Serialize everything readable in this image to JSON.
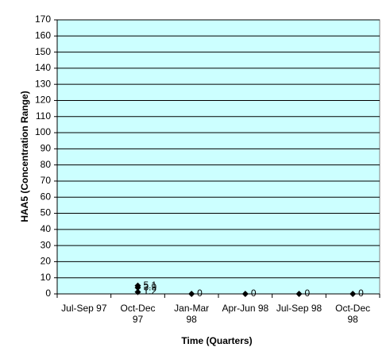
{
  "chart_data": {
    "type": "scatter",
    "y_label": "HAA5 (Concentration Range)",
    "x_label": "Time (Quarters)",
    "categories": [
      "Jul-Sep 97",
      "Oct-Dec\n97",
      "Jan-Mar\n98",
      "Apr-Jun 98",
      "Jul-Sep 98",
      "Oct-Dec\n98"
    ],
    "values": [
      [],
      [
        5.1,
        3.9,
        1.2
      ],
      [
        0
      ],
      [
        0
      ],
      [
        0
      ],
      [
        0
      ]
    ],
    "color": "#000000",
    "background": "#ccffff",
    "ylim": [
      0,
      170
    ],
    "yticks": [
      0,
      10,
      20,
      30,
      40,
      50,
      60,
      70,
      80,
      90,
      100,
      110,
      120,
      130,
      140,
      150,
      160,
      170
    ],
    "grid": true
  }
}
